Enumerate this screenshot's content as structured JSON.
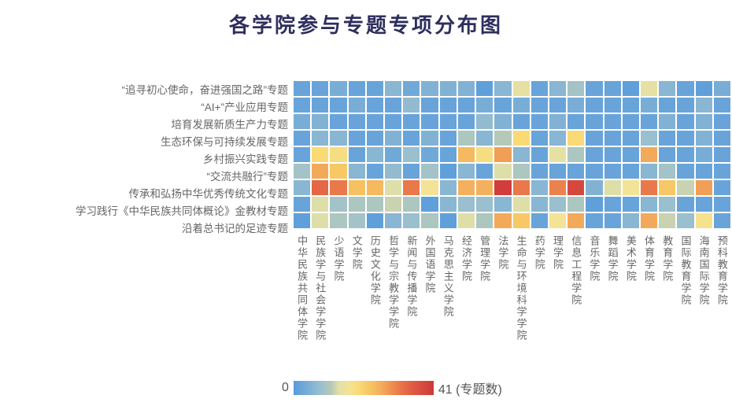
{
  "title": "各学院参与专题专项分布图",
  "legend": {
    "min_label": "0",
    "max_label": "41 (专题数)"
  },
  "colors": {
    "title": "#2e2e5e",
    "label": "#666666",
    "background": "#ffffff"
  },
  "colormap": [
    {
      "t": 0.0,
      "c": "#579BDB"
    },
    {
      "t": 0.1,
      "c": "#79AED6"
    },
    {
      "t": 0.2,
      "c": "#9CC0CE"
    },
    {
      "t": 0.27,
      "c": "#B6C9B8"
    },
    {
      "t": 0.32,
      "c": "#E0DFA8"
    },
    {
      "t": 0.4,
      "c": "#F5E393"
    },
    {
      "t": 0.47,
      "c": "#F9D972"
    },
    {
      "t": 0.55,
      "c": "#F7C462"
    },
    {
      "t": 0.62,
      "c": "#F4AE5C"
    },
    {
      "t": 0.68,
      "c": "#F09752"
    },
    {
      "t": 0.78,
      "c": "#E76F48"
    },
    {
      "t": 0.9,
      "c": "#D94E40"
    },
    {
      "t": 1.0,
      "c": "#CE3838"
    }
  ],
  "chart_data": {
    "type": "heatmap",
    "rows": [
      "“追寻初心使命，奋进强国之路”专题",
      "“AI+”产业应用专题",
      "培育发展新质生产力专题",
      "生态环保与可持续发展专题",
      "乡村振兴实践专题",
      "“交流共融行”专题",
      "传承和弘扬中华优秀传统文化专题",
      "学习践行《中华民族共同体概论》金教材专题",
      "沿着总书记的足迹专题"
    ],
    "columns": [
      "中华民族共同体学院",
      "民族学与社会学学院",
      "少语学院",
      "文学院",
      "历史文化学院",
      "哲学与宗教学学院",
      "新闻与传播学院",
      "外国语学院",
      "马克思主义学院",
      "经济学院",
      "管理学院",
      "法学院",
      "生命与环境科学学院",
      "药学院",
      "理学院",
      "信息工程学院",
      "音乐学院",
      "舞蹈学院",
      "美术学院",
      "体育学院",
      "教育学院",
      "国际教育学院",
      "海南国际学院",
      "预科教育学院"
    ],
    "values": [
      [
        2,
        2,
        4,
        2,
        2,
        6,
        3,
        5,
        5,
        5,
        1,
        6,
        14,
        2,
        6,
        9,
        2,
        2,
        1,
        14,
        6,
        2,
        1,
        4
      ],
      [
        2,
        2,
        2,
        4,
        2,
        2,
        7,
        2,
        2,
        2,
        4,
        2,
        4,
        2,
        2,
        4,
        2,
        2,
        2,
        4,
        2,
        2,
        6,
        2
      ],
      [
        4,
        5,
        2,
        2,
        2,
        2,
        2,
        2,
        2,
        2,
        7,
        5,
        2,
        2,
        5,
        2,
        2,
        2,
        2,
        2,
        5,
        2,
        5,
        2
      ],
      [
        2,
        6,
        6,
        2,
        2,
        5,
        2,
        5,
        2,
        10,
        6,
        11,
        19,
        2,
        6,
        19,
        2,
        2,
        2,
        8,
        2,
        2,
        5,
        2
      ],
      [
        2,
        19,
        18,
        2,
        6,
        3,
        8,
        3,
        2,
        24,
        18,
        27,
        6,
        2,
        14,
        10,
        2,
        2,
        2,
        26,
        2,
        2,
        4,
        2
      ],
      [
        9,
        26,
        22,
        6,
        2,
        7,
        2,
        9,
        1,
        6,
        2,
        13,
        10,
        2,
        2,
        2,
        2,
        2,
        2,
        6,
        9,
        2,
        2,
        2
      ],
      [
        6,
        33,
        31,
        23,
        24,
        13,
        31,
        16,
        6,
        25,
        25,
        40,
        31,
        6,
        30,
        38,
        5,
        13,
        16,
        31,
        22,
        12,
        27,
        2
      ],
      [
        2,
        13,
        9,
        10,
        10,
        12,
        10,
        1,
        6,
        8,
        8,
        6,
        13,
        6,
        8,
        10,
        1,
        2,
        2,
        6,
        8,
        2,
        2,
        2
      ],
      [
        1,
        13,
        10,
        9,
        1,
        6,
        8,
        10,
        1,
        13,
        10,
        26,
        22,
        2,
        16,
        26,
        2,
        2,
        6,
        26,
        12,
        8,
        17,
        2
      ]
    ],
    "vmin": 0,
    "vmax": 41,
    "colorbar_label": "专题数",
    "grid": false,
    "legend_position": "bottom-left"
  }
}
